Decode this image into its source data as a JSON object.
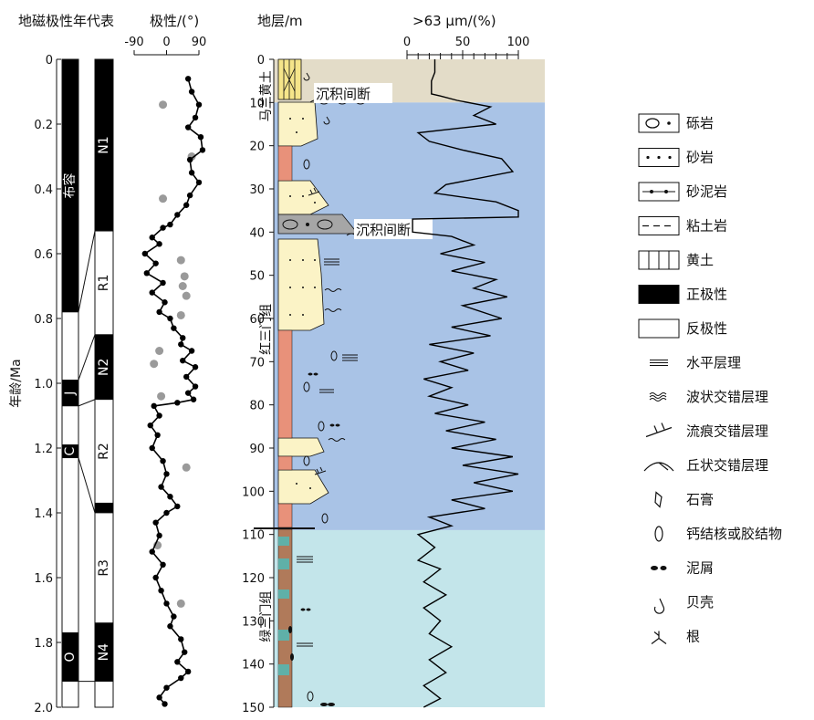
{
  "headers": {
    "polarity_timescale": "地磁极性年代表",
    "inclination": "极性/(°)",
    "strata": "地层/m",
    "grainsize": ">63 μm/(%)"
  },
  "age_axis": {
    "label": "年龄/Ma",
    "ticks": [
      "0",
      "0.2",
      "0.4",
      "0.6",
      "0.8",
      "1.0",
      "1.2",
      "1.4",
      "1.6",
      "1.8",
      "2.0"
    ]
  },
  "gpts": {
    "zones": [
      {
        "from": 0,
        "to": 0.78,
        "polarity": "normal",
        "label": "布容"
      },
      {
        "from": 0.78,
        "to": 0.99,
        "polarity": "reversed",
        "label": ""
      },
      {
        "from": 0.99,
        "to": 1.07,
        "polarity": "normal",
        "label": "J"
      },
      {
        "from": 1.07,
        "to": 1.19,
        "polarity": "reversed",
        "label": ""
      },
      {
        "from": 1.19,
        "to": 1.23,
        "polarity": "normal",
        "label": "C"
      },
      {
        "from": 1.23,
        "to": 1.77,
        "polarity": "reversed",
        "label": ""
      },
      {
        "from": 1.77,
        "to": 1.92,
        "polarity": "normal",
        "label": "O"
      },
      {
        "from": 1.92,
        "to": 2.0,
        "polarity": "reversed",
        "label": ""
      }
    ]
  },
  "local_polarity": {
    "zones": [
      {
        "from": 0,
        "to": 0.53,
        "polarity": "normal",
        "label": "N1"
      },
      {
        "from": 0.53,
        "to": 0.85,
        "polarity": "reversed",
        "label": "R1"
      },
      {
        "from": 0.85,
        "to": 1.05,
        "polarity": "normal",
        "label": "N2"
      },
      {
        "from": 1.05,
        "to": 1.37,
        "polarity": "reversed",
        "label": "R2"
      },
      {
        "from": 1.37,
        "to": 1.4,
        "polarity": "normal",
        "label": ""
      },
      {
        "from": 1.4,
        "to": 1.74,
        "polarity": "reversed",
        "label": "R3"
      },
      {
        "from": 1.74,
        "to": 1.92,
        "polarity": "normal",
        "label": "N4"
      },
      {
        "from": 1.92,
        "to": 2.0,
        "polarity": "reversed",
        "label": ""
      }
    ],
    "correlation_lines": [
      [
        0.78,
        0.53
      ],
      [
        0.99,
        0.85
      ],
      [
        1.07,
        1.05
      ],
      [
        1.23,
        1.4
      ],
      [
        1.92,
        1.92
      ]
    ]
  },
  "chart_data": [
    {
      "type": "line",
      "x_ticks": [
        "-90",
        "0",
        "90"
      ],
      "xlim": [
        -90,
        90
      ],
      "ylim": [
        0,
        2.0
      ],
      "inclination_curve": [
        [
          60,
          0.06
        ],
        [
          70,
          0.1
        ],
        [
          90,
          0.14
        ],
        [
          80,
          0.18
        ],
        [
          60,
          0.21
        ],
        [
          95,
          0.24
        ],
        [
          100,
          0.28
        ],
        [
          65,
          0.31
        ],
        [
          70,
          0.35
        ],
        [
          90,
          0.38
        ],
        [
          65,
          0.42
        ],
        [
          55,
          0.45
        ],
        [
          30,
          0.48
        ],
        [
          10,
          0.51
        ],
        [
          -10,
          0.52
        ],
        [
          -40,
          0.55
        ],
        [
          -20,
          0.57
        ],
        [
          -60,
          0.6
        ],
        [
          -30,
          0.63
        ],
        [
          -55,
          0.66
        ],
        [
          -10,
          0.69
        ],
        [
          -40,
          0.72
        ],
        [
          -5,
          0.75
        ],
        [
          -20,
          0.78
        ],
        [
          10,
          0.8
        ],
        [
          20,
          0.83
        ],
        [
          45,
          0.86
        ],
        [
          40,
          0.88
        ],
        [
          70,
          0.9
        ],
        [
          45,
          0.93
        ],
        [
          80,
          0.95
        ],
        [
          55,
          0.98
        ],
        [
          80,
          1.01
        ],
        [
          60,
          1.03
        ],
        [
          75,
          1.05
        ],
        [
          30,
          1.06
        ],
        [
          -35,
          1.07
        ],
        [
          -20,
          1.1
        ],
        [
          -45,
          1.13
        ],
        [
          -25,
          1.16
        ],
        [
          -40,
          1.2
        ],
        [
          -10,
          1.24
        ],
        [
          0,
          1.28
        ],
        [
          -15,
          1.32
        ],
        [
          10,
          1.35
        ],
        [
          30,
          1.38
        ],
        [
          0,
          1.4
        ],
        [
          -30,
          1.43
        ],
        [
          -20,
          1.47
        ],
        [
          -40,
          1.52
        ],
        [
          -10,
          1.56
        ],
        [
          -30,
          1.6
        ],
        [
          -15,
          1.64
        ],
        [
          0,
          1.68
        ],
        [
          20,
          1.72
        ],
        [
          10,
          1.75
        ],
        [
          40,
          1.79
        ],
        [
          50,
          1.83
        ],
        [
          30,
          1.86
        ],
        [
          60,
          1.89
        ],
        [
          40,
          1.91
        ],
        [
          0,
          1.94
        ],
        [
          -20,
          1.97
        ],
        [
          -5,
          1.99
        ]
      ],
      "gray_points": [
        [
          -10,
          0.14
        ],
        [
          70,
          0.3
        ],
        [
          -10,
          0.43
        ],
        [
          40,
          0.62
        ],
        [
          50,
          0.67
        ],
        [
          45,
          0.7
        ],
        [
          55,
          0.73
        ],
        [
          40,
          0.79
        ],
        [
          -20,
          0.9
        ],
        [
          -35,
          0.94
        ],
        [
          -15,
          1.04
        ],
        [
          55,
          1.26
        ],
        [
          -25,
          1.5
        ],
        [
          40,
          1.68
        ]
      ]
    },
    {
      "type": "line",
      "x_ticks": [
        "0",
        "50",
        "100"
      ],
      "xlim": [
        0,
        100
      ],
      "depth_ticks": [
        "0",
        "10",
        "20",
        "30",
        "40",
        "50",
        "60",
        "70",
        "80",
        "90",
        "100",
        "110",
        "120",
        "130",
        "140",
        "150"
      ],
      "ylim": [
        0,
        150
      ],
      "coarse_fraction": [
        [
          25,
          0
        ],
        [
          25,
          3
        ],
        [
          22,
          5
        ],
        [
          22,
          8
        ],
        [
          30,
          8.5
        ],
        [
          45,
          9.5
        ],
        [
          75,
          11
        ],
        [
          60,
          13
        ],
        [
          80,
          15
        ],
        [
          10,
          17
        ],
        [
          20,
          19
        ],
        [
          50,
          21
        ],
        [
          85,
          23
        ],
        [
          95,
          26
        ],
        [
          35,
          29
        ],
        [
          25,
          31
        ],
        [
          80,
          33
        ],
        [
          100,
          35
        ],
        [
          100,
          36.5
        ],
        [
          5,
          37
        ],
        [
          5,
          40
        ],
        [
          40,
          41
        ],
        [
          60,
          43
        ],
        [
          30,
          45
        ],
        [
          70,
          47
        ],
        [
          40,
          49
        ],
        [
          80,
          51
        ],
        [
          60,
          53
        ],
        [
          90,
          55
        ],
        [
          50,
          57
        ],
        [
          85,
          60
        ],
        [
          40,
          62
        ],
        [
          75,
          64
        ],
        [
          20,
          66
        ],
        [
          60,
          68
        ],
        [
          30,
          70
        ],
        [
          55,
          72
        ],
        [
          15,
          74
        ],
        [
          40,
          76
        ],
        [
          20,
          78
        ],
        [
          55,
          80
        ],
        [
          25,
          82
        ],
        [
          70,
          84
        ],
        [
          35,
          86
        ],
        [
          80,
          88
        ],
        [
          40,
          90
        ],
        [
          95,
          92
        ],
        [
          50,
          94
        ],
        [
          100,
          96
        ],
        [
          60,
          98
        ],
        [
          95,
          100
        ],
        [
          40,
          102
        ],
        [
          70,
          104
        ],
        [
          20,
          106
        ],
        [
          40,
          108
        ],
        [
          10,
          110
        ],
        [
          25,
          113
        ],
        [
          10,
          116
        ],
        [
          30,
          118
        ],
        [
          15,
          121
        ],
        [
          35,
          124
        ],
        [
          15,
          127
        ],
        [
          30,
          130
        ],
        [
          20,
          133
        ],
        [
          40,
          136
        ],
        [
          20,
          139
        ],
        [
          35,
          142
        ],
        [
          15,
          145
        ],
        [
          30,
          148
        ],
        [
          15,
          150
        ]
      ]
    }
  ],
  "strata": {
    "units": [
      {
        "name": "马兰黄土",
        "from": 0,
        "to": 17
      },
      {
        "name": "红三门组",
        "from": 17,
        "to": 108
      },
      {
        "name": "绿三门组",
        "from": 108,
        "to": 150
      }
    ],
    "hiatus_labels": [
      {
        "text": "沉积间断",
        "depth": 9.5
      },
      {
        "text": "沉积间断",
        "depth": 41
      }
    ]
  },
  "legend": [
    {
      "label": "砾岩",
      "symbol": "conglomerate-icon"
    },
    {
      "label": "砂岩",
      "symbol": "sandstone-icon"
    },
    {
      "label": "砂泥岩",
      "symbol": "sandy-mudstone-icon"
    },
    {
      "label": "粘土岩",
      "symbol": "claystone-icon"
    },
    {
      "label": "黄土",
      "symbol": "loess-icon"
    },
    {
      "label": "正极性",
      "symbol": "normal-polarity-icon"
    },
    {
      "label": "反极性",
      "symbol": "reversed-polarity-icon"
    },
    {
      "label": "水平层理",
      "symbol": "horizontal-bedding-icon"
    },
    {
      "label": "波状交错层理",
      "symbol": "wavy-cross-bedding-icon"
    },
    {
      "label": "流痕交错层理",
      "symbol": "ripple-cross-bedding-icon"
    },
    {
      "label": "丘状交错层理",
      "symbol": "hummocky-cross-bedding-icon"
    },
    {
      "label": "石膏",
      "symbol": "gypsum-icon"
    },
    {
      "label": "钙结核或胶结物",
      "symbol": "calcareous-nodule-icon"
    },
    {
      "label": "泥屑",
      "symbol": "mud-clast-icon"
    },
    {
      "label": "贝壳",
      "symbol": "shell-icon"
    },
    {
      "label": "根",
      "symbol": "root-icon"
    }
  ],
  "colors": {
    "loess_band": "#e3dcc8",
    "red_band": "#a9c3e6",
    "green_band": "#c3e5ea",
    "sand": "#fbf3c6",
    "reddish_clay": "#e8917a",
    "greenish_clay": "#5fb0a8",
    "brownish_clay": "#b07a5a",
    "gray_conglomerate": "#a6a6a6",
    "gray_point": "#9a9a9a"
  }
}
